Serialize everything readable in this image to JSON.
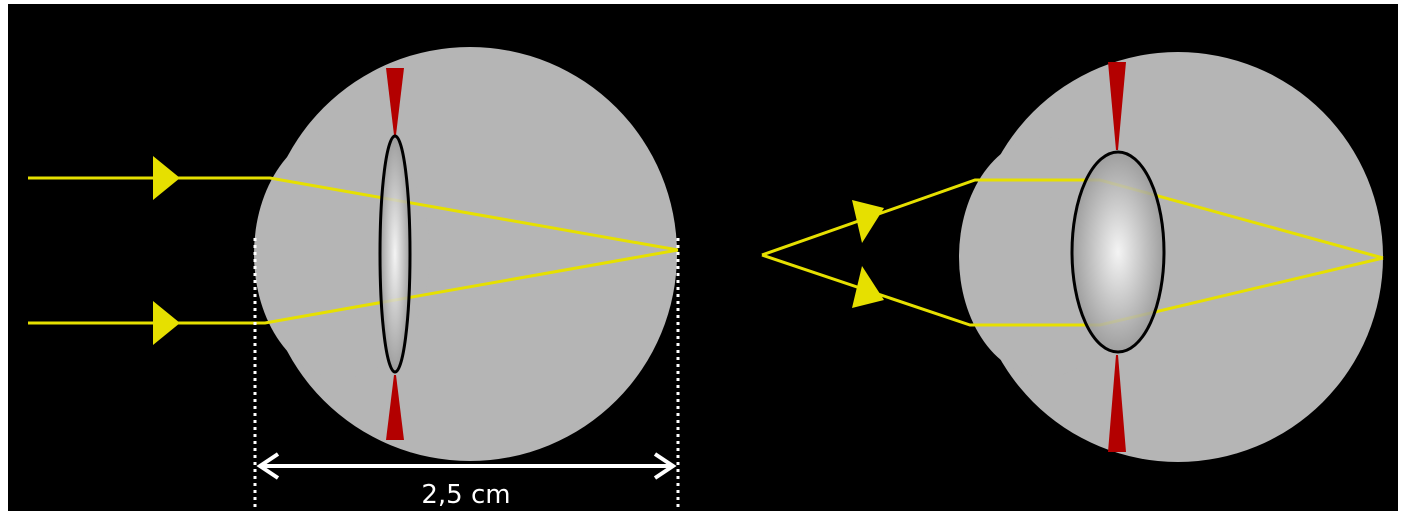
{
  "dimension": {
    "label": "2,5 cm"
  }
}
